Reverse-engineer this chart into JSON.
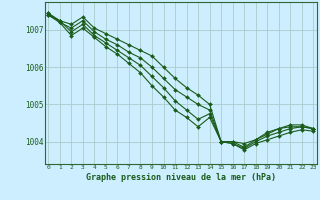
{
  "title": "Graphe pression niveau de la mer (hPa)",
  "background_color": "#cceeff",
  "grid_color": "#aacccc",
  "line_color": "#1a5c1a",
  "x_ticks": [
    0,
    1,
    2,
    3,
    4,
    5,
    6,
    7,
    8,
    9,
    10,
    11,
    12,
    13,
    14,
    15,
    16,
    17,
    18,
    19,
    20,
    21,
    22,
    23
  ],
  "y_ticks": [
    1004,
    1005,
    1006,
    1007
  ],
  "ylim": [
    1003.4,
    1007.75
  ],
  "xlim": [
    -0.3,
    23.3
  ],
  "series": [
    [
      1007.4,
      1007.25,
      1007.15,
      1007.35,
      1007.05,
      1006.9,
      1006.75,
      1006.6,
      1006.45,
      1006.3,
      1006.0,
      1005.7,
      1005.45,
      1005.25,
      1005.0,
      1004.0,
      1004.0,
      1003.95,
      1004.05,
      1004.25,
      1004.35,
      1004.45,
      1004.45,
      1004.35
    ],
    [
      1007.4,
      1007.2,
      1007.05,
      1007.25,
      1006.95,
      1006.75,
      1006.6,
      1006.4,
      1006.25,
      1006.0,
      1005.7,
      1005.4,
      1005.2,
      1005.0,
      1004.85,
      1004.0,
      1004.0,
      1003.85,
      1004.05,
      1004.2,
      1004.35,
      1004.4,
      1004.4,
      1004.35
    ],
    [
      1007.45,
      1007.25,
      1006.95,
      1007.15,
      1006.85,
      1006.65,
      1006.45,
      1006.25,
      1006.05,
      1005.75,
      1005.45,
      1005.1,
      1004.85,
      1004.6,
      1004.75,
      1004.0,
      1003.95,
      1003.82,
      1004.0,
      1004.15,
      1004.25,
      1004.35,
      1004.4,
      1004.35
    ],
    [
      1007.45,
      1007.2,
      1006.85,
      1007.05,
      1006.8,
      1006.55,
      1006.35,
      1006.1,
      1005.85,
      1005.5,
      1005.2,
      1004.85,
      1004.65,
      1004.4,
      1004.65,
      1004.0,
      1003.95,
      1003.78,
      1003.95,
      1004.05,
      1004.15,
      1004.25,
      1004.32,
      1004.28
    ]
  ]
}
